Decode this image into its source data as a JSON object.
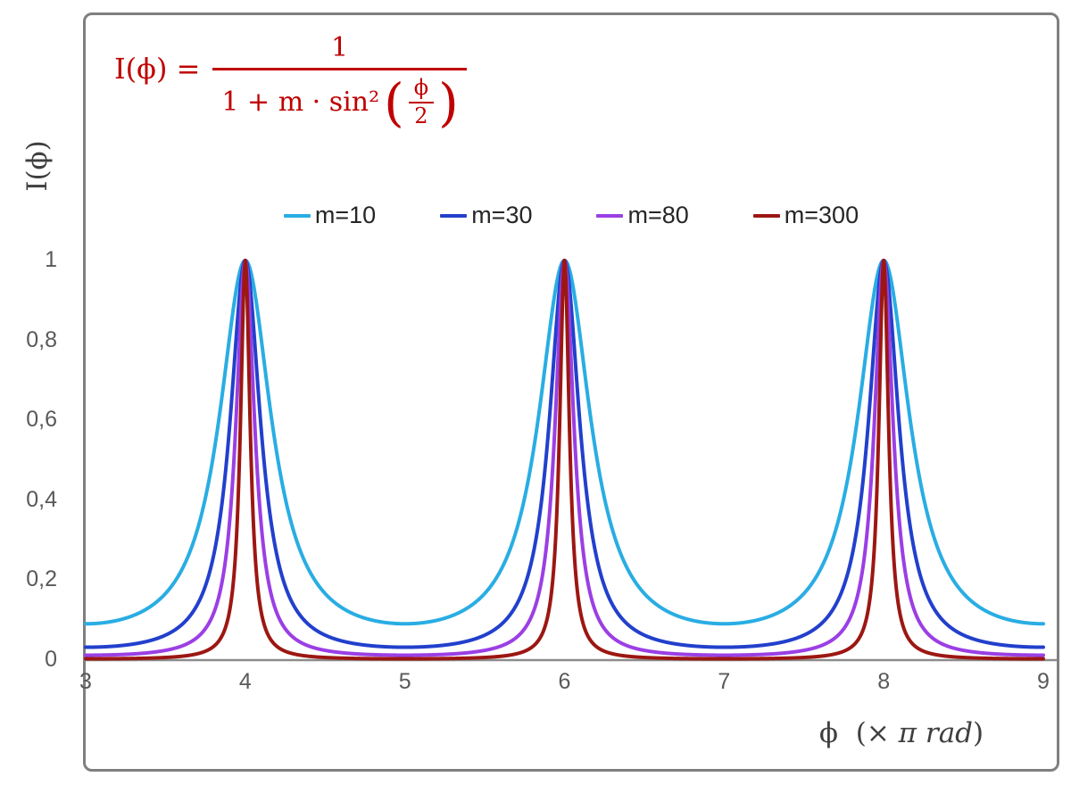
{
  "colors": {
    "frame": "#7F7F7F",
    "axis": "#8C8C8C",
    "formula": "#C00000",
    "tick_text": "#595959",
    "axis_title_text": "#3F3F3F"
  },
  "formula": {
    "lhs": "I(ϕ) =",
    "numerator": "1",
    "den_prefix": "1 + m · sin²",
    "lparen": "(",
    "inner_numerator": "ϕ",
    "inner_denominator": "2",
    "rparen": ")"
  },
  "chart_data": {
    "type": "line",
    "function": "I(phi) = 1 / (1 + m * sin^2(phi/2))",
    "title": "",
    "ylabel": "I(ϕ)",
    "xlabel": {
      "symbol": "ϕ",
      "unit_prefix": "(× ",
      "unit_italic": "π rad",
      "unit_close": ")"
    },
    "x_unit": "π rad",
    "x_range_pi_rad": [
      3,
      9
    ],
    "ylim": [
      0,
      1
    ],
    "grid": false,
    "legend_position": "top-center",
    "peaks_at_pi_rad": [
      4,
      6,
      8
    ],
    "peak_value": 1,
    "x_ticks": [
      "3",
      "4",
      "5",
      "6",
      "7",
      "8",
      "9"
    ],
    "x_tick_values": [
      3,
      4,
      5,
      6,
      7,
      8,
      9
    ],
    "y_ticks": [
      "1",
      "0,8",
      "0,6",
      "0,4",
      "0,2",
      "0"
    ],
    "y_tick_values": [
      1,
      0.8,
      0.6,
      0.4,
      0.2,
      0
    ],
    "series": [
      {
        "name": "m=10",
        "m": 10,
        "color": "#29ADE3"
      },
      {
        "name": "m=30",
        "m": 30,
        "color": "#2240CC"
      },
      {
        "name": "m=80",
        "m": 80,
        "color": "#9B3FE4"
      },
      {
        "name": "m=300",
        "m": 300,
        "color": "#9C1712"
      }
    ]
  }
}
